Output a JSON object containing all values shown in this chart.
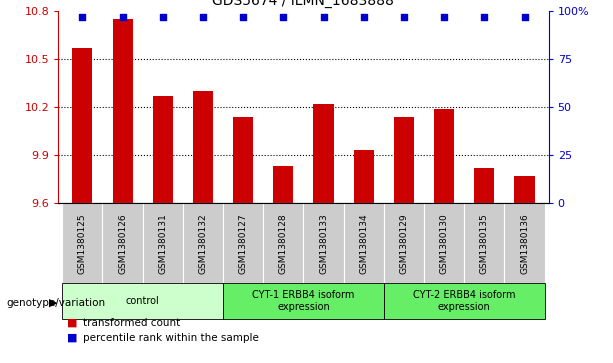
{
  "title": "GDS5674 / ILMN_1683888",
  "samples": [
    "GSM1380125",
    "GSM1380126",
    "GSM1380131",
    "GSM1380132",
    "GSM1380127",
    "GSM1380128",
    "GSM1380133",
    "GSM1380134",
    "GSM1380129",
    "GSM1380130",
    "GSM1380135",
    "GSM1380136"
  ],
  "bar_values": [
    10.57,
    10.75,
    10.27,
    10.3,
    10.14,
    9.83,
    10.22,
    9.93,
    10.14,
    10.19,
    9.82,
    9.77
  ],
  "percentile_values": [
    97,
    97,
    97,
    97,
    97,
    97,
    97,
    97,
    97,
    97,
    97,
    97
  ],
  "ylim": [
    9.6,
    10.8
  ],
  "yticks": [
    9.6,
    9.9,
    10.2,
    10.5,
    10.8
  ],
  "ytick_labels": [
    "9.6",
    "9.9",
    "10.2",
    "10.5",
    "10.8"
  ],
  "right_yticks": [
    0,
    25,
    50,
    75,
    100
  ],
  "right_ytick_labels": [
    "0",
    "25",
    "50",
    "75",
    "100%"
  ],
  "bar_color": "#cc0000",
  "dot_color": "#0000cc",
  "groups": [
    {
      "label": "control",
      "start": 0,
      "end": 4,
      "color": "#ccffcc"
    },
    {
      "label": "CYT-1 ERBB4 isoform\nexpression",
      "start": 4,
      "end": 8,
      "color": "#66ee66"
    },
    {
      "label": "CYT-2 ERBB4 isoform\nexpression",
      "start": 8,
      "end": 12,
      "color": "#66ee66"
    }
  ],
  "xlabel_group": "genotype/variation",
  "legend_bar": "transformed count",
  "legend_dot": "percentile rank within the sample",
  "tick_color_left": "#cc0000",
  "tick_color_right": "#0000cc",
  "sample_bg_color": "#cccccc",
  "bar_width": 0.5
}
